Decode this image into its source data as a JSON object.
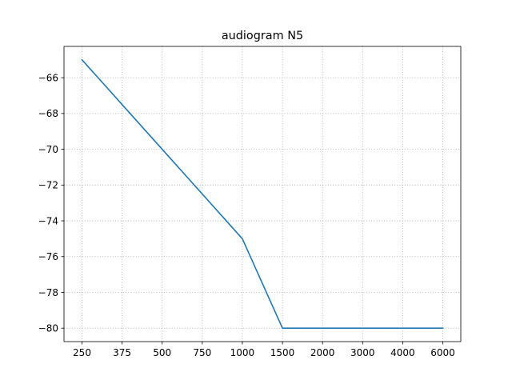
{
  "chart_data": {
    "type": "line",
    "title": "audiogram N5",
    "xlabel": "",
    "ylabel": "",
    "categories": [
      "250",
      "375",
      "500",
      "750",
      "1000",
      "1500",
      "2000",
      "3000",
      "4000",
      "6000"
    ],
    "series": [
      {
        "values": [
          -65,
          -67.5,
          -70,
          -72.5,
          -75,
          -80,
          -80,
          -80,
          -80,
          -80
        ],
        "color": "#1f77b4"
      }
    ],
    "yticks": [
      -66,
      -68,
      -70,
      -72,
      -74,
      -76,
      -78,
      -80
    ],
    "ylim": [
      -80.75,
      -64.25
    ],
    "grid": true,
    "grid_style": "dotted"
  }
}
